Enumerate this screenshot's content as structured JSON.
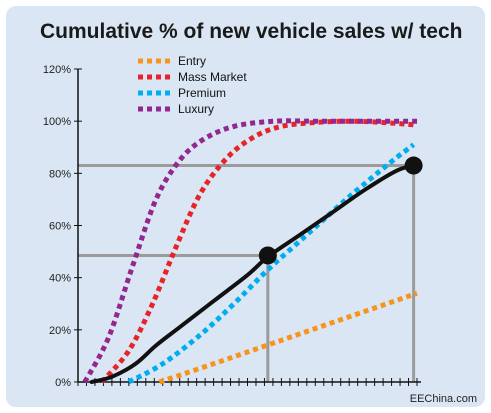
{
  "chart_data": {
    "type": "line",
    "title": "Cumulative % of new vehicle sales w/ tech",
    "source": "EEChina.com",
    "xlabel": "",
    "ylabel": "",
    "ylim": [
      0,
      120
    ],
    "xlim": [
      0,
      100
    ],
    "y_ticks": [
      "0%",
      "20%",
      "40%",
      "60%",
      "80%",
      "100%",
      "120%"
    ],
    "y_tick_values": [
      0,
      20,
      40,
      60,
      80,
      100,
      120
    ],
    "grid": false,
    "legend_position": "top-left",
    "series": [
      {
        "name": "Entry",
        "color": "#f7941d",
        "style": "dotted",
        "x": [
          24,
          40,
          60,
          80,
          100
        ],
        "y": [
          0,
          7,
          16,
          25,
          34
        ]
      },
      {
        "name": "Mass Market",
        "color": "#e8232a",
        "style": "dotted",
        "x": [
          7,
          15,
          22,
          29,
          36,
          44,
          52,
          60,
          70,
          80,
          90,
          100
        ],
        "y": [
          0,
          12,
          30,
          52,
          72,
          86,
          94,
          98,
          99.5,
          100,
          99.5,
          98.5
        ]
      },
      {
        "name": "Premium",
        "color": "#00aeef",
        "style": "dotted",
        "x": [
          15,
          25,
          36,
          46,
          56,
          68,
          80,
          92,
          99
        ],
        "y": [
          0,
          7,
          18,
          30,
          43,
          57,
          71,
          84,
          91
        ]
      },
      {
        "name": "Luxury",
        "color": "#92278f",
        "style": "dotted",
        "x": [
          2,
          9,
          16,
          23,
          30,
          37,
          46,
          58,
          70,
          85,
          100
        ],
        "y": [
          0,
          17,
          44,
          70,
          85,
          93,
          98,
          100,
          100,
          100,
          100
        ]
      },
      {
        "name": "",
        "color": "#111111",
        "style": "solid",
        "x": [
          4,
          10,
          17,
          23,
          30,
          40,
          50,
          56,
          65,
          75,
          85,
          94,
          99
        ],
        "y": [
          0,
          2,
          7,
          14,
          21,
          31,
          41,
          48,
          56,
          65,
          74,
          81,
          83
        ]
      }
    ],
    "markers": [
      {
        "x": 56,
        "y": 48.5
      },
      {
        "x": 99,
        "y": 83
      }
    ],
    "reference_lines": [
      {
        "x": 56,
        "y": 48.5
      },
      {
        "x": 99,
        "y": 83
      }
    ]
  }
}
